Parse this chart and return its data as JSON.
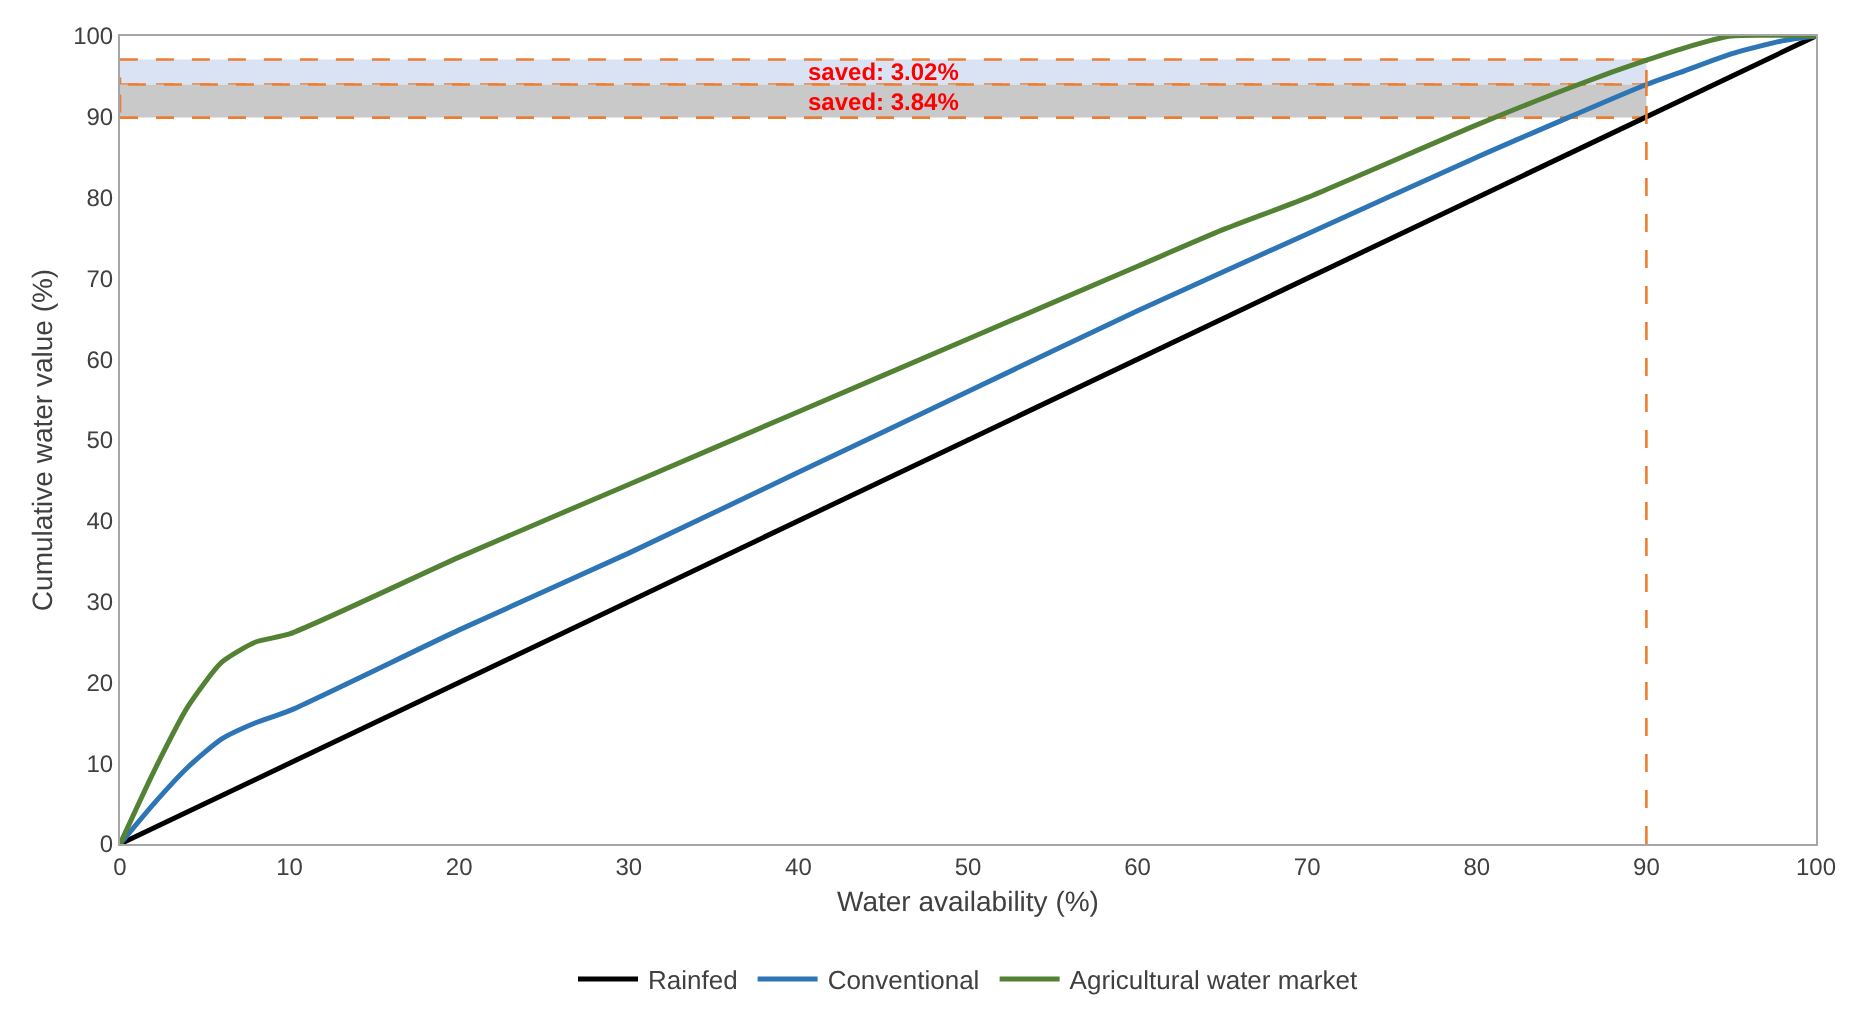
{
  "chart_data": {
    "type": "line",
    "xlabel": "Water availability (%)",
    "ylabel": "Cumulative water value (%)",
    "xlim": [
      0,
      100
    ],
    "ylim": [
      0,
      100
    ],
    "xticks": [
      0,
      10,
      20,
      30,
      40,
      50,
      60,
      70,
      80,
      90,
      100
    ],
    "yticks": [
      0,
      10,
      20,
      30,
      40,
      50,
      60,
      70,
      80,
      90,
      100
    ],
    "grid": false,
    "legend": "bottom",
    "marker": "none",
    "line_style": "solid",
    "series": [
      {
        "name": "Rainfed",
        "color": "#000000",
        "x": [
          0,
          100
        ],
        "values": [
          0,
          100
        ]
      },
      {
        "name": "Conventional",
        "color": "#2e75b6",
        "x": [
          0,
          2,
          4,
          6,
          8,
          10,
          20,
          30,
          40,
          50,
          60,
          70,
          80,
          90,
          92,
          95,
          98,
          100
        ],
        "values": [
          0,
          5,
          9.5,
          13,
          15,
          16.5,
          26.5,
          36,
          46,
          56,
          66,
          75.5,
          85,
          94,
          95.5,
          97.8,
          99.4,
          100
        ]
      },
      {
        "name": "Agricultural water market",
        "color": "#548235",
        "x": [
          0,
          2,
          4,
          6,
          8,
          10,
          20,
          30,
          40,
          50,
          60,
          65,
          70,
          80,
          86,
          90,
          93,
          95,
          100
        ],
        "values": [
          0,
          9,
          17,
          22.5,
          25,
          26,
          35.5,
          44.5,
          53.5,
          62.5,
          71.5,
          76,
          80,
          89,
          94,
          97,
          99,
          100,
          100
        ]
      }
    ],
    "ref_lines": [
      {
        "axis": "x",
        "value": 90,
        "color": "#ed7d31",
        "line_style": "dashed"
      }
    ],
    "bands": [
      {
        "axis": "y",
        "from": 94.0,
        "to": 97.1,
        "color": "#dae3f3",
        "label": "saved: 3.02%"
      },
      {
        "axis": "y",
        "from": 89.9,
        "to": 94.0,
        "color": "#c9c9c9",
        "label": "saved: 3.84%"
      }
    ]
  }
}
